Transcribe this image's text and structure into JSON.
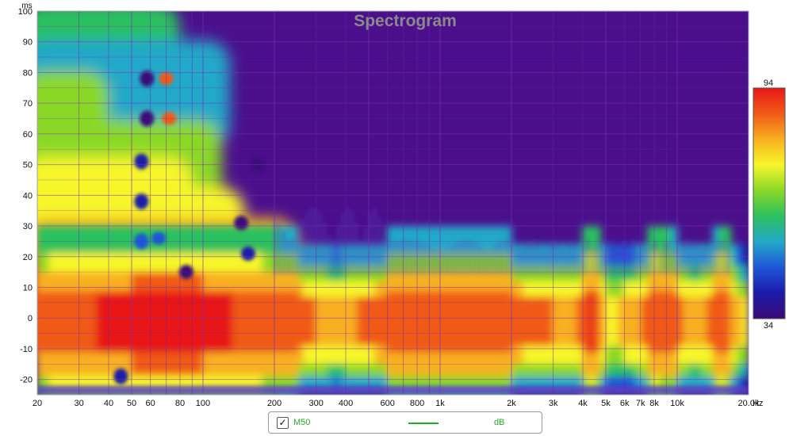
{
  "chart_data": {
    "type": "heatmap",
    "title": "Spectrogram",
    "xlabel": "Hz",
    "ylabel": "ms",
    "xscale": "log",
    "xlim": [
      20,
      20000
    ],
    "ylim": [
      -25,
      100
    ],
    "x_ticks": [
      {
        "value": 20,
        "label": "20"
      },
      {
        "value": 30,
        "label": "30"
      },
      {
        "value": 40,
        "label": "40"
      },
      {
        "value": 50,
        "label": "50"
      },
      {
        "value": 60,
        "label": "60"
      },
      {
        "value": 80,
        "label": "80"
      },
      {
        "value": 100,
        "label": "100"
      },
      {
        "value": 200,
        "label": "200"
      },
      {
        "value": 300,
        "label": "300"
      },
      {
        "value": 400,
        "label": "400"
      },
      {
        "value": 600,
        "label": "600"
      },
      {
        "value": 800,
        "label": "800"
      },
      {
        "value": 1000,
        "label": "1k"
      },
      {
        "value": 2000,
        "label": "2k"
      },
      {
        "value": 3000,
        "label": "3k"
      },
      {
        "value": 4000,
        "label": "4k"
      },
      {
        "value": 5000,
        "label": "5k"
      },
      {
        "value": 6000,
        "label": "6k"
      },
      {
        "value": 7000,
        "label": "7k"
      },
      {
        "value": 8000,
        "label": "8k"
      },
      {
        "value": 10000,
        "label": "10k"
      },
      {
        "value": 20000,
        "label": "20.0k"
      }
    ],
    "y_ticks": [
      100,
      90,
      80,
      70,
      60,
      50,
      40,
      30,
      20,
      10,
      0,
      -10,
      -20
    ],
    "colorbar": {
      "min": 34,
      "max": 94,
      "unit": "dB"
    },
    "colors": {
      "background": "#4b0f8c",
      "grid_minor": "#6a22b0",
      "grid_major": "#7c2fc0",
      "scale": [
        "#3a0a78",
        "#1a1aa8",
        "#1e56d8",
        "#23a8c8",
        "#2cc060",
        "#8ad828",
        "#f6f62a",
        "#f8b020",
        "#f05a18",
        "#e81818"
      ]
    },
    "series": [
      {
        "name": "M50",
        "unit": "dB",
        "color": "#22aa22"
      }
    ],
    "ridge_profile": {
      "freq_hz": [
        20,
        30,
        40,
        60,
        100,
        150,
        200,
        300,
        370,
        450,
        600,
        1000,
        2000,
        3000,
        3700,
        4400,
        5200,
        6500,
        8000,
        9500,
        12000,
        16000,
        20000
      ],
      "peak_db": [
        88,
        90,
        91,
        93,
        92,
        90,
        88,
        84,
        80,
        84,
        86,
        87,
        86,
        84,
        82,
        92,
        76,
        80,
        89,
        87,
        80,
        90,
        70
      ]
    }
  },
  "legend": {
    "checked": true,
    "name": "M50",
    "unit": "dB"
  }
}
